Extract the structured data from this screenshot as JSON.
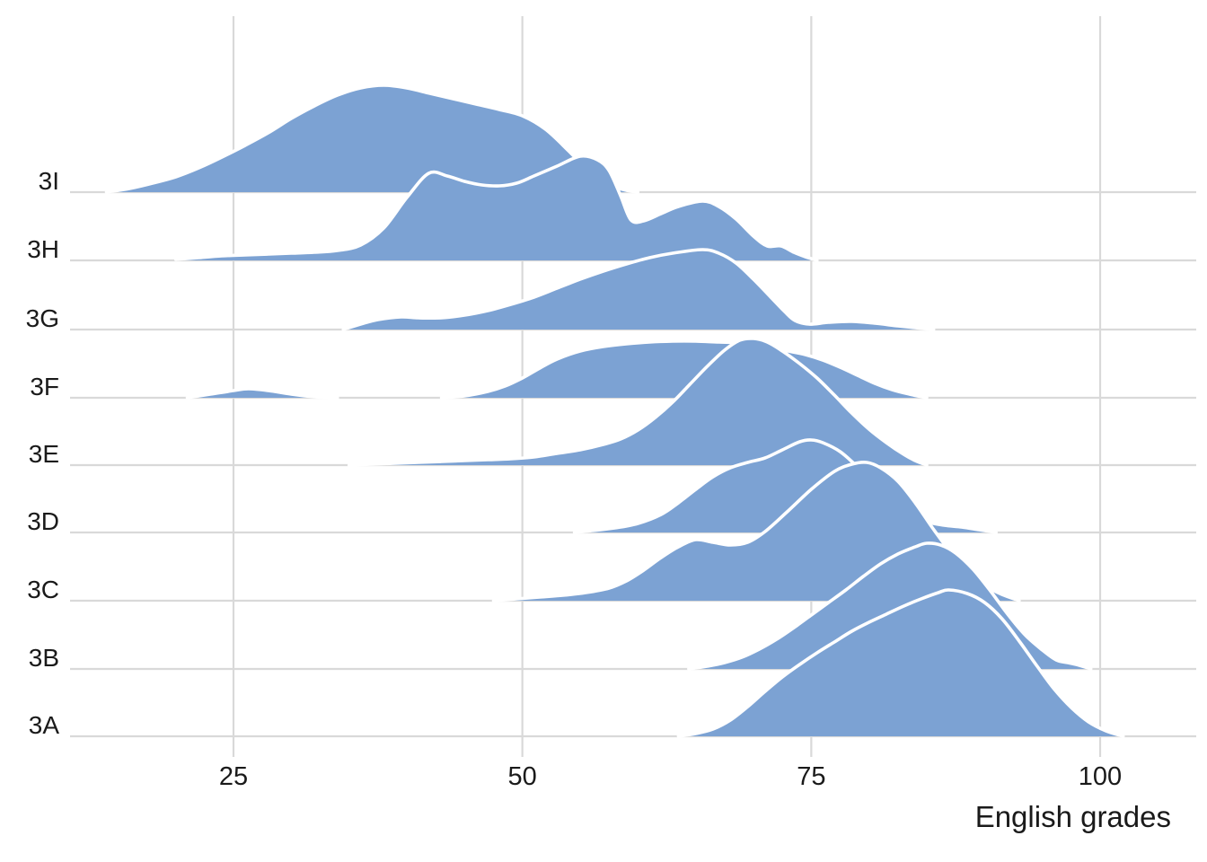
{
  "chart_data": {
    "type": "area",
    "subtype": "ridgeline",
    "title": "",
    "xlabel": "English grades",
    "ylabel": "",
    "x_ticks": [
      "25",
      "50",
      "75",
      "100"
    ],
    "x_tick_values": [
      25,
      50,
      75,
      100
    ],
    "grid": "on",
    "legend": "none",
    "categories_axis_note": "one density ridge per class, top row 3I to bottom row 3A",
    "height_units": "relative density height (display px above each class baseline)",
    "classes": [
      {
        "label": "3I",
        "points": [
          [
            14,
            0
          ],
          [
            16,
            4
          ],
          [
            18,
            10
          ],
          [
            20,
            17
          ],
          [
            22,
            27
          ],
          [
            24,
            39
          ],
          [
            26,
            52
          ],
          [
            28,
            66
          ],
          [
            30,
            82
          ],
          [
            32,
            96
          ],
          [
            34,
            108
          ],
          [
            36,
            116
          ],
          [
            38,
            119
          ],
          [
            40,
            116
          ],
          [
            42,
            110
          ],
          [
            44,
            104
          ],
          [
            46,
            98
          ],
          [
            48,
            92
          ],
          [
            50,
            85
          ],
          [
            52,
            70
          ],
          [
            54,
            46
          ],
          [
            56,
            20
          ],
          [
            57.5,
            8
          ],
          [
            59,
            2
          ],
          [
            60,
            0
          ]
        ]
      },
      {
        "label": "3H",
        "points": [
          [
            20,
            1
          ],
          [
            22,
            3
          ],
          [
            24,
            5
          ],
          [
            26,
            6
          ],
          [
            28,
            7
          ],
          [
            30,
            8
          ],
          [
            32,
            9
          ],
          [
            34,
            11
          ],
          [
            36,
            17
          ],
          [
            38,
            36
          ],
          [
            40,
            70
          ],
          [
            41.9,
            97
          ],
          [
            43.5,
            94
          ],
          [
            45,
            88
          ],
          [
            46.5,
            84
          ],
          [
            48,
            83
          ],
          [
            49.5,
            86
          ],
          [
            51,
            94
          ],
          [
            53,
            105
          ],
          [
            55,
            116
          ],
          [
            56.5,
            112
          ],
          [
            57.5,
            100
          ],
          [
            58.5,
            72
          ],
          [
            59.4,
            45
          ],
          [
            60.5,
            44
          ],
          [
            62,
            52
          ],
          [
            63.5,
            60
          ],
          [
            65.6,
            66
          ],
          [
            67,
            60
          ],
          [
            68.5,
            46
          ],
          [
            70,
            27
          ],
          [
            71.2,
            16
          ],
          [
            72.4,
            16
          ],
          [
            73.5,
            9
          ],
          [
            74.5,
            4
          ],
          [
            75.5,
            0
          ]
        ]
      },
      {
        "label": "3G",
        "points": [
          [
            34.5,
            0
          ],
          [
            36,
            6
          ],
          [
            37.5,
            11
          ],
          [
            39.5,
            14
          ],
          [
            41,
            13
          ],
          [
            43,
            13
          ],
          [
            45,
            16
          ],
          [
            47,
            21
          ],
          [
            49,
            28
          ],
          [
            51,
            36
          ],
          [
            53,
            46
          ],
          [
            55,
            56
          ],
          [
            57,
            65
          ],
          [
            59,
            73
          ],
          [
            61,
            80
          ],
          [
            63,
            85
          ],
          [
            65.6,
            89
          ],
          [
            67,
            85
          ],
          [
            68.5,
            74
          ],
          [
            70,
            56
          ],
          [
            71.5,
            36
          ],
          [
            72.7,
            20
          ],
          [
            73.6,
            10
          ],
          [
            74.8,
            6
          ],
          [
            76.5,
            8
          ],
          [
            78.5,
            9
          ],
          [
            80.5,
            7
          ],
          [
            82.5,
            4
          ],
          [
            84,
            2
          ],
          [
            85.6,
            0
          ]
        ]
      },
      {
        "label": "3F",
        "points": [
          [
            21,
            0
          ],
          [
            23,
            4
          ],
          [
            25,
            8
          ],
          [
            26.3,
            10
          ],
          [
            28,
            8
          ],
          [
            30,
            4
          ],
          [
            32,
            1
          ],
          [
            34,
            0
          ],
          [
            37,
            0
          ],
          [
            40,
            0
          ],
          [
            43,
            0
          ],
          [
            45,
            2
          ],
          [
            47,
            7
          ],
          [
            48.5,
            13
          ],
          [
            50,
            22
          ],
          [
            51.5,
            33
          ],
          [
            53,
            43
          ],
          [
            55,
            52
          ],
          [
            57,
            57
          ],
          [
            59,
            60
          ],
          [
            61,
            62
          ],
          [
            63,
            63
          ],
          [
            65,
            63
          ],
          [
            67,
            62
          ],
          [
            69,
            61
          ],
          [
            71,
            57
          ],
          [
            73,
            52
          ],
          [
            74.5,
            48
          ],
          [
            76,
            42
          ],
          [
            77.5,
            34
          ],
          [
            79,
            25
          ],
          [
            80.5,
            16
          ],
          [
            82,
            9
          ],
          [
            83.5,
            4
          ],
          [
            85,
            0
          ]
        ]
      },
      {
        "label": "3E",
        "points": [
          [
            35,
            0
          ],
          [
            37,
            1
          ],
          [
            39,
            2
          ],
          [
            41,
            3
          ],
          [
            43,
            4
          ],
          [
            45,
            5
          ],
          [
            47,
            6
          ],
          [
            49,
            7
          ],
          [
            51,
            9
          ],
          [
            53,
            13
          ],
          [
            55,
            17
          ],
          [
            57,
            23
          ],
          [
            58.5,
            29
          ],
          [
            60,
            39
          ],
          [
            61.5,
            53
          ],
          [
            63,
            70
          ],
          [
            64.5,
            90
          ],
          [
            66,
            110
          ],
          [
            67.5,
            128
          ],
          [
            68.8,
            139
          ],
          [
            70,
            141
          ],
          [
            71.2,
            137
          ],
          [
            72.5,
            127
          ],
          [
            74,
            113
          ],
          [
            75.5,
            97
          ],
          [
            77,
            78
          ],
          [
            78.5,
            58
          ],
          [
            80,
            40
          ],
          [
            81.5,
            25
          ],
          [
            83,
            12
          ],
          [
            84,
            5
          ],
          [
            85,
            0
          ]
        ]
      },
      {
        "label": "3D",
        "points": [
          [
            54.5,
            0
          ],
          [
            56,
            2
          ],
          [
            58,
            5
          ],
          [
            60,
            10
          ],
          [
            62,
            20
          ],
          [
            63.5,
            33
          ],
          [
            65,
            48
          ],
          [
            66.5,
            62
          ],
          [
            68,
            72
          ],
          [
            69.5,
            78
          ],
          [
            71,
            83
          ],
          [
            72.5,
            92
          ],
          [
            74,
            101
          ],
          [
            75,
            103
          ],
          [
            76,
            100
          ],
          [
            77.5,
            90
          ],
          [
            79,
            73
          ],
          [
            80.5,
            53
          ],
          [
            82,
            35
          ],
          [
            83.5,
            21
          ],
          [
            85,
            12
          ],
          [
            86.5,
            8
          ],
          [
            88,
            6
          ],
          [
            89.5,
            3
          ],
          [
            91,
            0
          ]
        ]
      },
      {
        "label": "3C",
        "points": [
          [
            47.5,
            0
          ],
          [
            49.5,
            2
          ],
          [
            51.5,
            4
          ],
          [
            53.5,
            6
          ],
          [
            55.5,
            9
          ],
          [
            57.5,
            14
          ],
          [
            59,
            22
          ],
          [
            60.5,
            34
          ],
          [
            62,
            48
          ],
          [
            63.5,
            60
          ],
          [
            65,
            68
          ],
          [
            66.5,
            65
          ],
          [
            68,
            62
          ],
          [
            69.5,
            65
          ],
          [
            71,
            77
          ],
          [
            73,
            100
          ],
          [
            75,
            124
          ],
          [
            77,
            144
          ],
          [
            78.5,
            152
          ],
          [
            79.8,
            154
          ],
          [
            81,
            148
          ],
          [
            82.5,
            133
          ],
          [
            84,
            109
          ],
          [
            85.5,
            81
          ],
          [
            87,
            55
          ],
          [
            88.5,
            33
          ],
          [
            90,
            17
          ],
          [
            91.5,
            7
          ],
          [
            93,
            0
          ]
        ]
      },
      {
        "label": "3B",
        "points": [
          [
            64.4,
            0
          ],
          [
            66,
            3
          ],
          [
            67.5,
            7
          ],
          [
            69,
            13
          ],
          [
            70.5,
            22
          ],
          [
            72,
            33
          ],
          [
            73.5,
            46
          ],
          [
            75,
            60
          ],
          [
            76.5,
            74
          ],
          [
            78,
            88
          ],
          [
            79.5,
            103
          ],
          [
            81,
            117
          ],
          [
            82.5,
            128
          ],
          [
            84,
            136
          ],
          [
            85,
            140
          ],
          [
            86.2,
            138
          ],
          [
            87.5,
            129
          ],
          [
            89,
            111
          ],
          [
            90.5,
            87
          ],
          [
            92,
            61
          ],
          [
            93.5,
            38
          ],
          [
            95,
            21
          ],
          [
            96.2,
            10
          ],
          [
            97.2,
            7
          ],
          [
            98.2,
            4
          ],
          [
            99.2,
            0
          ]
        ]
      },
      {
        "label": "3A",
        "points": [
          [
            63.5,
            0
          ],
          [
            65,
            3
          ],
          [
            66.5,
            8
          ],
          [
            68,
            18
          ],
          [
            69.5,
            33
          ],
          [
            71,
            50
          ],
          [
            72.5,
            66
          ],
          [
            74,
            80
          ],
          [
            75.5,
            93
          ],
          [
            77,
            105
          ],
          [
            78.5,
            117
          ],
          [
            80,
            127
          ],
          [
            81.5,
            136
          ],
          [
            83,
            145
          ],
          [
            84.5,
            153
          ],
          [
            86,
            160
          ],
          [
            86.9,
            163
          ],
          [
            88.5,
            159
          ],
          [
            90,
            149
          ],
          [
            91.5,
            131
          ],
          [
            93,
            106
          ],
          [
            94.5,
            79
          ],
          [
            96,
            53
          ],
          [
            97.5,
            32
          ],
          [
            99,
            16
          ],
          [
            100.5,
            6
          ],
          [
            102,
            0
          ]
        ]
      }
    ],
    "style": {
      "ridge_fill": "#7CA2D3",
      "ridge_stroke": "#FFFFFF",
      "gridline_color": "#D9D9D9",
      "text_color": "#1A1A1A",
      "background": "#FFFFFF"
    }
  }
}
